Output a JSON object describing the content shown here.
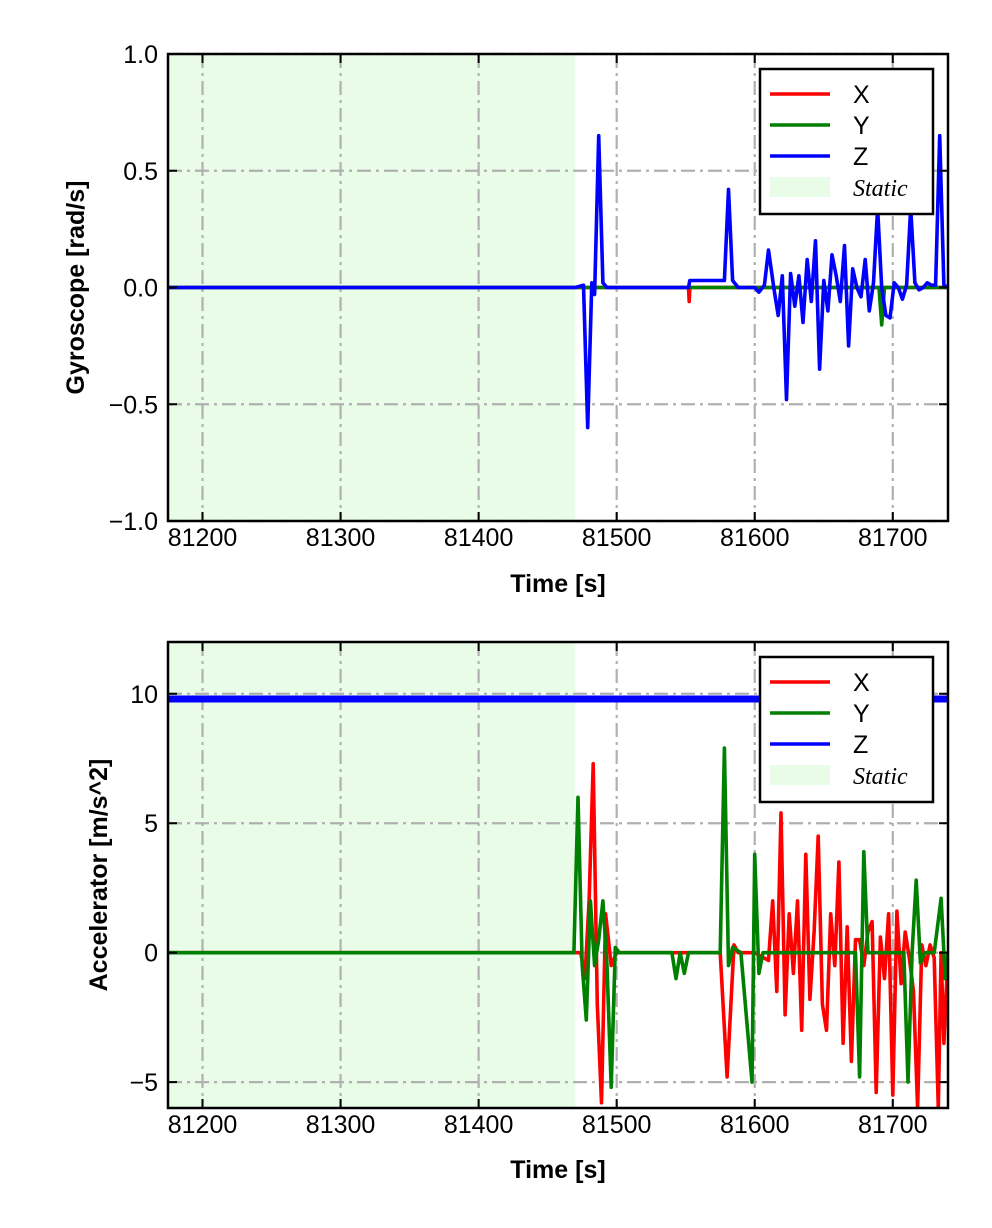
{
  "chart_data": [
    {
      "type": "line",
      "title": "",
      "xlabel": "Time [s]",
      "ylabel": "Gyroscope [rad/s]",
      "xlim": [
        81175,
        81740
      ],
      "ylim": [
        -1.0,
        1.0
      ],
      "xticks": [
        81200,
        81300,
        81400,
        81500,
        81600,
        81700
      ],
      "xtick_labels": [
        "81200",
        "81300",
        "81400",
        "81500",
        "81600",
        "81700"
      ],
      "yticks": [
        -1.0,
        -0.5,
        0.0,
        0.5,
        1.0
      ],
      "ytick_labels": [
        "−1.0",
        "−0.5",
        "0.0",
        "0.5",
        "1.0"
      ],
      "grid": true,
      "legend_position": "top-right",
      "static_region": {
        "label": "Static",
        "x_start": 81175,
        "x_end": 81470,
        "color": "#e8fce8"
      },
      "series": [
        {
          "name": "X",
          "color": "#ff0000",
          "x": [
            81175,
            81552,
            81552.5,
            81553,
            81600,
            81740
          ],
          "y": [
            0,
            0,
            -0.06,
            0,
            0,
            0
          ]
        },
        {
          "name": "Y",
          "color": "#008000",
          "x": [
            81175,
            81550,
            81690,
            81692,
            81694,
            81740
          ],
          "y": [
            0,
            0,
            0,
            -0.16,
            0,
            0
          ]
        },
        {
          "name": "Z",
          "color": "#0000ff",
          "x": [
            81175,
            81470,
            81476,
            81479,
            81482,
            81484,
            81487,
            81490,
            81493,
            81552,
            81553,
            81578,
            81581,
            81584,
            81588,
            81600,
            81603,
            81607,
            81610,
            81614,
            81617,
            81620,
            81623,
            81626,
            81629,
            81632,
            81635,
            81638,
            81641,
            81644,
            81647,
            81650,
            81653,
            81656,
            81659,
            81662,
            81665,
            81668,
            81671,
            81674,
            81677,
            81680,
            81683,
            81686,
            81689,
            81692,
            81695,
            81698,
            81701,
            81704,
            81707,
            81710,
            81713,
            81716,
            81719,
            81722,
            81725,
            81728,
            81731,
            81734,
            81737,
            81740
          ],
          "y": [
            0,
            0,
            0.01,
            -0.6,
            0.02,
            -0.03,
            0.65,
            0.02,
            0,
            0,
            0.03,
            0.03,
            0.42,
            0.03,
            0,
            0,
            -0.02,
            0.01,
            0.16,
            -0.01,
            -0.12,
            0.05,
            -0.48,
            0.06,
            -0.08,
            0.05,
            -0.15,
            0.12,
            -0.06,
            0.2,
            -0.35,
            0.03,
            -0.1,
            0.14,
            0.05,
            -0.06,
            0.18,
            -0.25,
            0.08,
            0.0,
            -0.04,
            0.12,
            -0.1,
            0.02,
            0.34,
            0.0,
            -0.12,
            -0.13,
            0.02,
            0.0,
            -0.05,
            0.01,
            0.34,
            0.02,
            -0.01,
            0.0,
            0.02,
            0.01,
            0.01,
            0.65,
            0.01,
            0
          ]
        }
      ]
    },
    {
      "type": "line",
      "title": "",
      "xlabel": "Time [s]",
      "ylabel": "Accelerator [m/s^2]",
      "xlim": [
        81175,
        81740
      ],
      "ylim": [
        -6,
        12
      ],
      "xticks": [
        81200,
        81300,
        81400,
        81500,
        81600,
        81700
      ],
      "xtick_labels": [
        "81200",
        "81300",
        "81400",
        "81500",
        "81600",
        "81700"
      ],
      "yticks": [
        -5,
        0,
        5,
        10
      ],
      "ytick_labels": [
        "−5",
        "0",
        "5",
        "10"
      ],
      "grid": true,
      "legend_position": "top-right",
      "static_region": {
        "label": "Static",
        "x_start": 81175,
        "x_end": 81470,
        "color": "#e8fce8"
      },
      "series": [
        {
          "name": "X",
          "color": "#ff0000",
          "x": [
            81175,
            81474,
            81477,
            81480,
            81483,
            81486,
            81489,
            81492,
            81496,
            81500,
            81575,
            81580,
            81585,
            81588,
            81600,
            81610,
            81613,
            81616,
            81619,
            81622,
            81625,
            81628,
            81631,
            81634,
            81637,
            81640,
            81643,
            81646,
            81649,
            81652,
            81655,
            81658,
            81661,
            81664,
            81667,
            81670,
            81673,
            81676,
            81679,
            81682,
            81685,
            81688,
            81691,
            81694,
            81697,
            81700,
            81703,
            81706,
            81709,
            81712,
            81715,
            81718,
            81721,
            81724,
            81727,
            81730,
            81733,
            81735,
            81737,
            81740
          ],
          "y": [
            0,
            0,
            -1.0,
            2.0,
            7.3,
            -2.0,
            -5.8,
            1.5,
            -0.5,
            0,
            0,
            -4.8,
            0.3,
            0,
            0,
            -0.3,
            2.0,
            -1.5,
            5.4,
            -2.4,
            1.5,
            -0.8,
            2.0,
            -3.0,
            3.8,
            -1.8,
            0.8,
            4.5,
            -2.0,
            -3.0,
            1.5,
            -0.5,
            3.5,
            -3.5,
            1.0,
            -4.2,
            0.5,
            0.5,
            -0.5,
            0.8,
            1.2,
            -5.4,
            0.6,
            -1.0,
            1.5,
            -5.5,
            1.6,
            -1.2,
            0.8,
            -0.2,
            -1.5,
            -6.0,
            0.3,
            -0.5,
            0.3,
            -0.2,
            -6.0,
            0.0,
            -3.5,
            0
          ]
        },
        {
          "name": "Y",
          "color": "#008000",
          "x": [
            81175,
            81469,
            81472,
            81475,
            81478,
            81481,
            81484,
            81487,
            81490,
            81493,
            81496,
            81499,
            81502,
            81540,
            81543,
            81546,
            81549,
            81552,
            81555,
            81575,
            81578,
            81581,
            81584,
            81590,
            81598,
            81600,
            81603,
            81606,
            81620,
            81640,
            81660,
            81673,
            81676,
            81679,
            81682,
            81690,
            81708,
            81711,
            81714,
            81717,
            81720,
            81723,
            81730,
            81735,
            81738,
            81740
          ],
          "y": [
            0,
            0,
            6.0,
            -0.5,
            -2.6,
            2.0,
            -0.5,
            0.5,
            2.0,
            -0.5,
            -5.2,
            0.2,
            0,
            0,
            -1.0,
            0,
            -0.8,
            0,
            0,
            0,
            7.9,
            -0.5,
            0.2,
            0,
            -5.0,
            3.8,
            -0.8,
            0,
            0,
            0,
            0,
            0,
            -4.8,
            3.9,
            0,
            0,
            0,
            -5.0,
            0,
            2.8,
            -0.4,
            0,
            0,
            2.1,
            -1.0,
            0
          ]
        },
        {
          "name": "Z",
          "color": "#0000ff",
          "x": [
            81175,
            81740
          ],
          "y": [
            9.8,
            9.8
          ]
        }
      ]
    }
  ]
}
